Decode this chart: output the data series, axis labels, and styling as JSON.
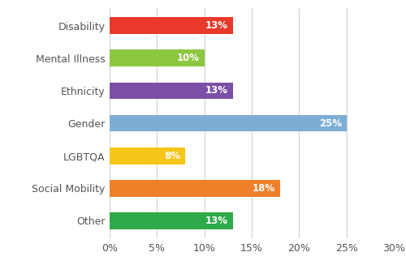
{
  "categories": [
    "Disability",
    "Mental Illness",
    "Ethnicity",
    "Gender",
    "LGBTQA",
    "Social Mobility",
    "Other"
  ],
  "values": [
    13,
    10,
    13,
    25,
    8,
    18,
    13
  ],
  "colors": [
    "#e8392b",
    "#8dc63f",
    "#7b4fa6",
    "#7dadd4",
    "#f5c518",
    "#f07f2a",
    "#2daa4a"
  ],
  "xlim": [
    0,
    30
  ],
  "xticks": [
    0,
    5,
    10,
    15,
    20,
    25,
    30
  ],
  "xtick_labels": [
    "0%",
    "5%",
    "10%",
    "15%",
    "20%",
    "25%",
    "30%"
  ],
  "bar_label_color": "#ffffff",
  "bar_label_fontsize": 8.5,
  "tick_label_fontsize": 9,
  "ytick_label_fontsize": 9,
  "background_color": "#ffffff",
  "grid_color": "#d0d0d0",
  "bar_height": 0.52
}
